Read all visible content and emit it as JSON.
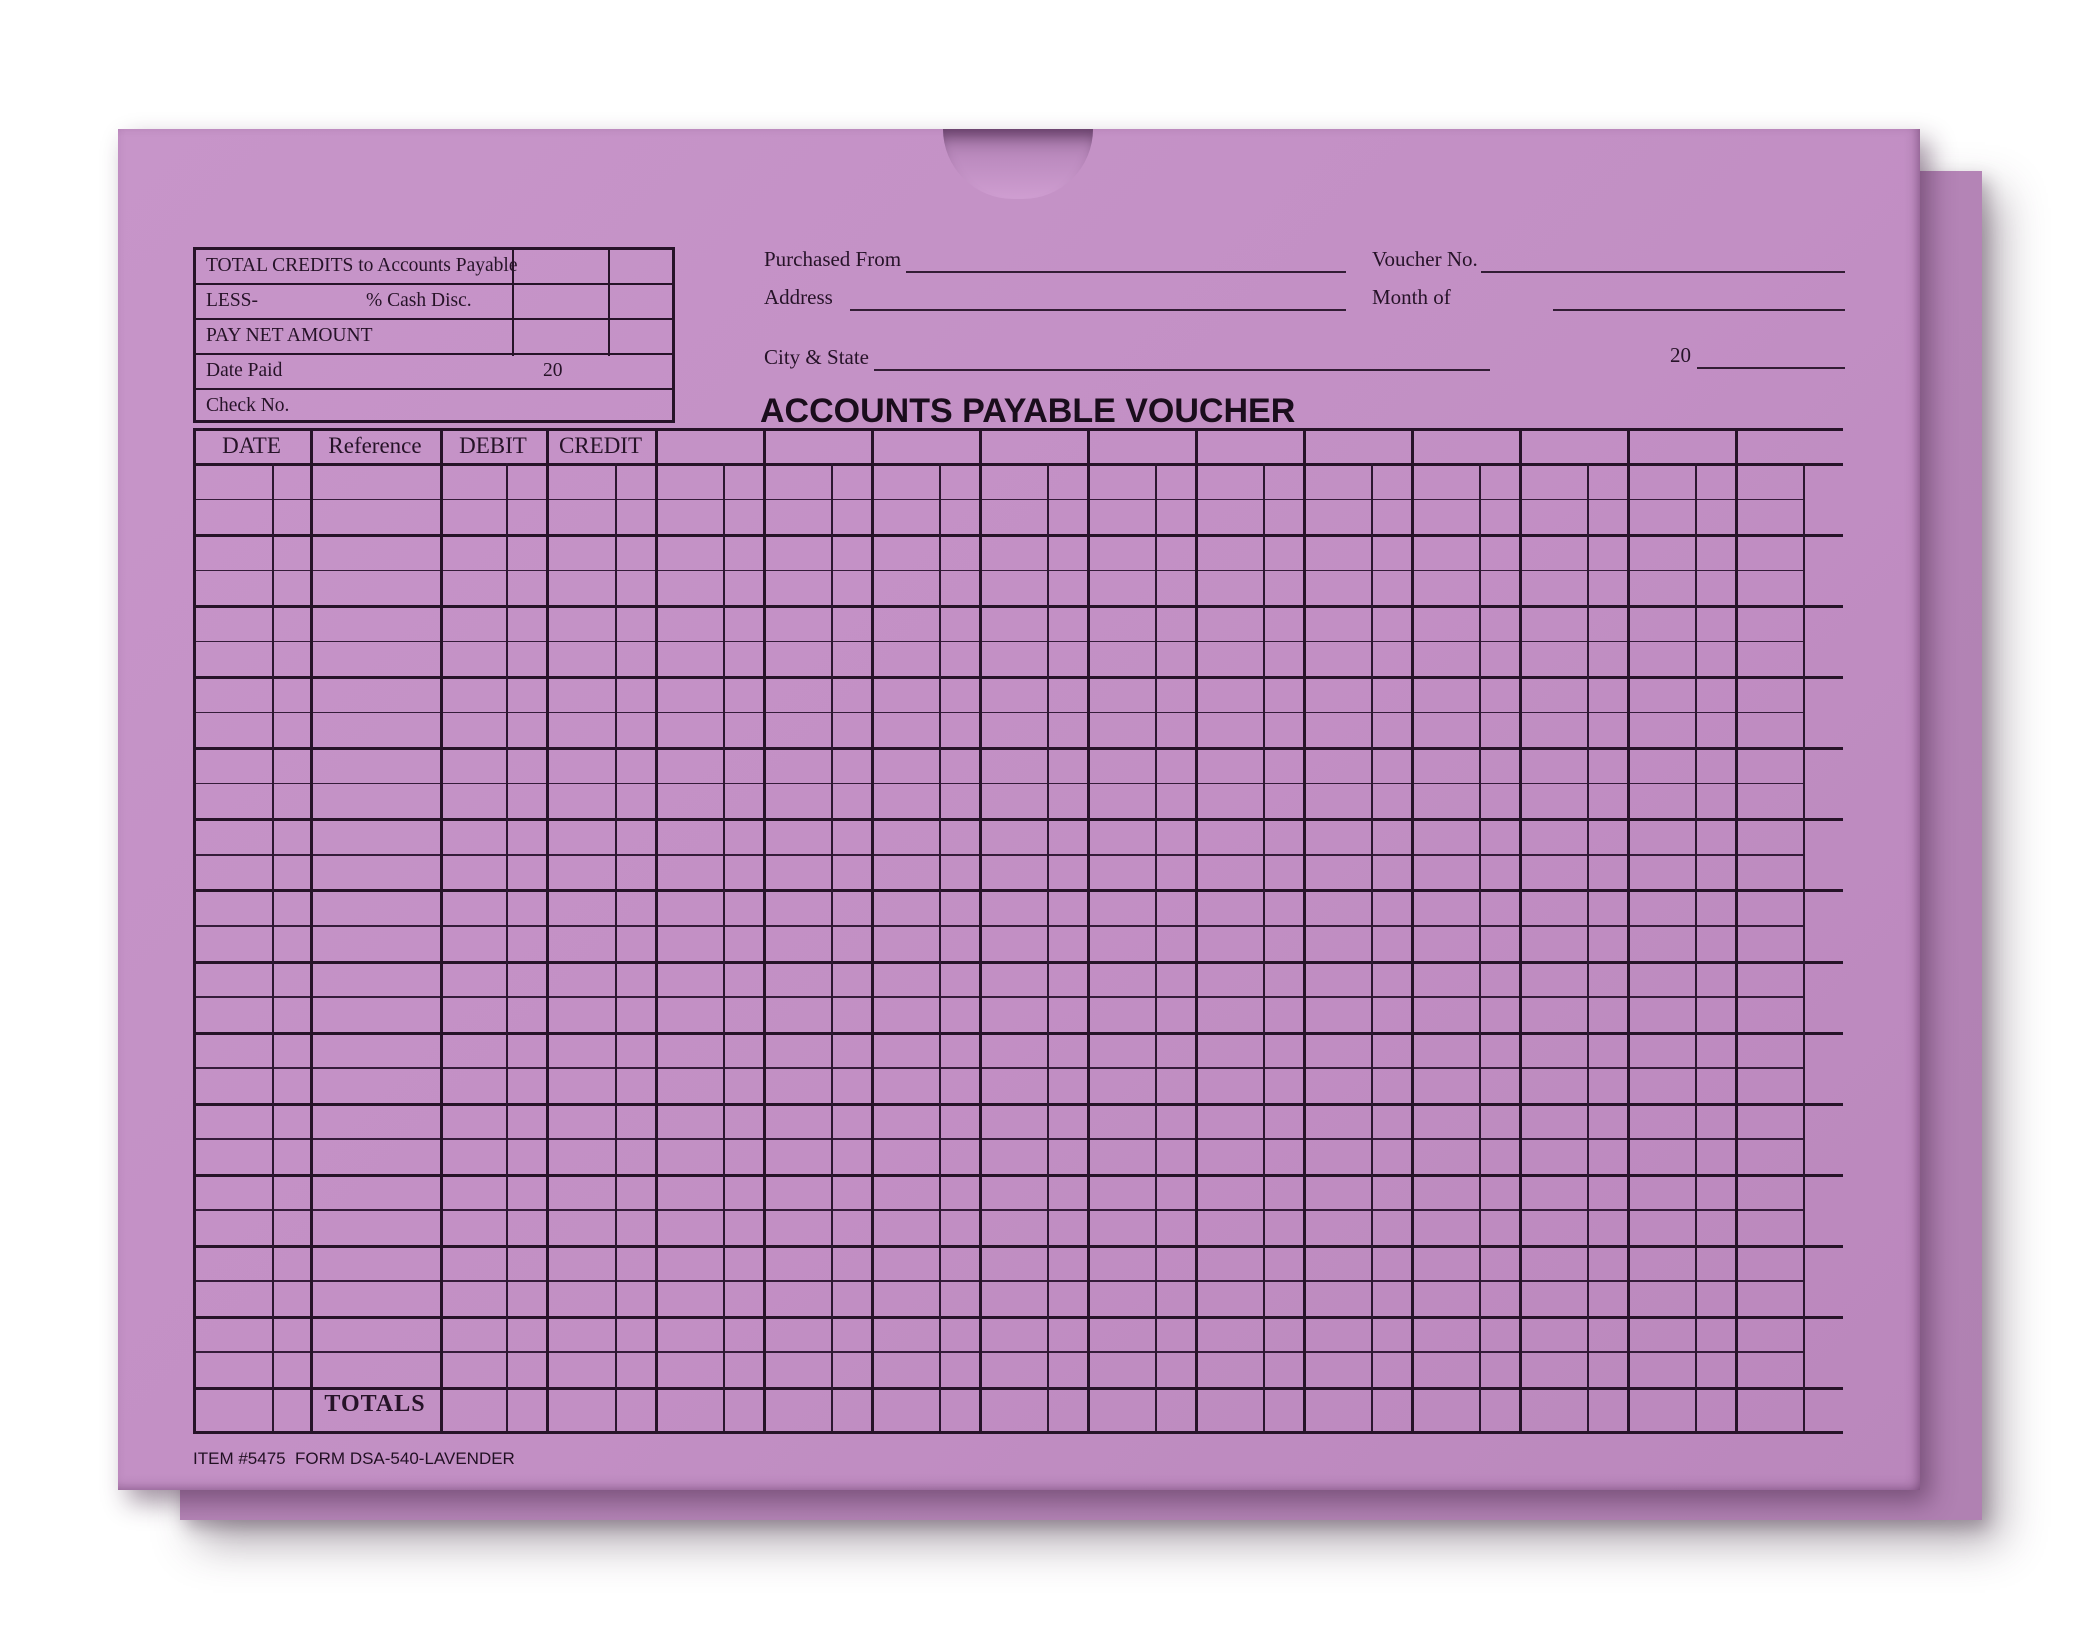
{
  "envelope": {
    "title": "ACCOUNTS PAYABLE VOUCHER",
    "header_fields": {
      "purchased_from_label": "Purchased From",
      "voucher_no_label": "Voucher No.",
      "address_label": "Address",
      "month_of_label": "Month of",
      "city_state_label": "City & State",
      "year_prefix": "20"
    },
    "summary_table": {
      "rows": [
        {
          "label": "TOTAL CREDITS to Accounts Payable"
        },
        {
          "label": "LESS-",
          "label2": "% Cash Disc."
        },
        {
          "label": "PAY NET AMOUNT"
        },
        {
          "label": "Date Paid",
          "year_prefix": "20"
        },
        {
          "label": "Check No."
        }
      ]
    },
    "ledger": {
      "column_headers": [
        "DATE",
        "Reference",
        "DEBIT",
        "CREDIT"
      ],
      "unlabeled_column_count": 11,
      "totals_label": "TOTALS"
    },
    "footer": "ITEM #5475  FORM DSA-540-LAVENDER",
    "colors": {
      "paper": "#c28fc4",
      "paper_back": "#b282b4",
      "ink": "#261328"
    }
  }
}
